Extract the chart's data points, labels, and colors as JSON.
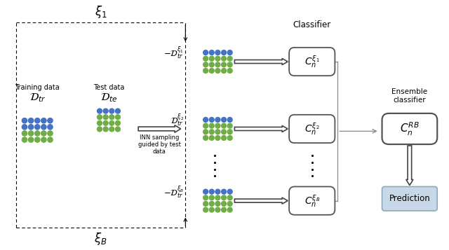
{
  "blue_color": "#4472C4",
  "green_color": "#70AD47",
  "bg_color": "#FFFFFF",
  "training_label": "Training data",
  "dtr_label": "$\\mathcal{D}_{tr}$",
  "test_label": "Test data",
  "dte_label": "$\\mathcal{D}_{te}$",
  "inn_label": "INN sampling\nguided by test\ndata",
  "classifier_label": "Classifier",
  "ensemble_label": "Ensemble\nclassifier",
  "prediction_label": "Prediction",
  "xi1_label": "$\\xi_1$",
  "xiB_label": "$\\xi_B$",
  "bs1_label": "$-\\mathcal{D}_{tr}^{\\xi_1}$",
  "bs2_label": "$\\mathcal{D}_{tr}^{\\xi_2}$",
  "bs3_label": "$-\\mathcal{D}_{tr}^{\\xi_B}$",
  "cl1_label": "$C_n^{\\xi_1}$",
  "cl2_label": "$C_n^{\\xi_2}$",
  "cl3_label": "$C_n^{\\xi_B}$",
  "ens_label": "$C_n^{RB}$",
  "pred_bg": "#C8D8E8",
  "pred_edge": "#8AAABF"
}
